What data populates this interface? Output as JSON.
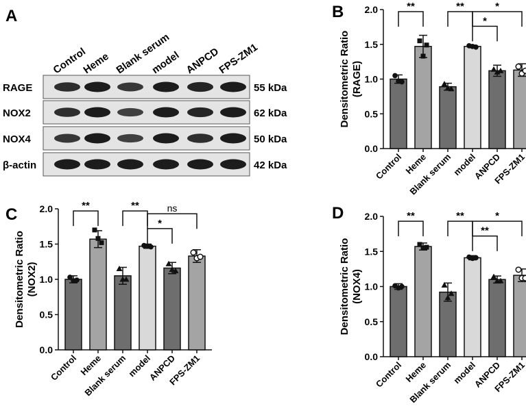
{
  "panel_letters": [
    "A",
    "B",
    "C",
    "D"
  ],
  "blot": {
    "lanes": [
      "Control",
      "Heme",
      "Blank serum",
      "model",
      "ANPCD",
      "FPS-ZM1"
    ],
    "bands": [
      {
        "protein": "RAGE",
        "size": "55 kDa"
      },
      {
        "protein": "NOX2",
        "size": "62 kDa"
      },
      {
        "protein": "NOX4",
        "size": "50 kDa"
      },
      {
        "protein": "β-actin",
        "size": "42 kDa"
      }
    ]
  },
  "chart_data": [
    {
      "panel": "B",
      "type": "bar",
      "categories": [
        "Control",
        "Heme",
        "Blank serum",
        "model",
        "ANPCD",
        "FPS-ZM1"
      ],
      "values": [
        1.0,
        1.47,
        0.89,
        1.47,
        1.12,
        1.13
      ],
      "errors": [
        0.06,
        0.16,
        0.05,
        0.02,
        0.08,
        0.09
      ],
      "points": [
        [
          1.05,
          0.97,
          0.96
        ],
        [
          1.55,
          1.33,
          1.49
        ],
        [
          0.93,
          0.87,
          0.86
        ],
        [
          1.48,
          1.47,
          1.46
        ],
        [
          1.14,
          1.1,
          1.12
        ],
        [
          1.18,
          1.08,
          1.12
        ]
      ],
      "markers": [
        "circle",
        "square",
        "triangle",
        "circle",
        "triangle",
        "circle-open"
      ],
      "ylim": [
        0,
        2.0
      ],
      "yticks": [
        "0.0",
        "0.5",
        "1.0",
        "1.5",
        "2.0"
      ],
      "ylabel": "Densitometric Ratio",
      "ylabel2": "(RAGE)",
      "significance": [
        {
          "from": 0,
          "to": 1,
          "y": 1.97,
          "label": "**"
        },
        {
          "from": 2,
          "to": 3,
          "y": 1.97,
          "label": "**"
        },
        {
          "from": 3,
          "to": 4,
          "y": 1.76,
          "label": "*"
        },
        {
          "from": 3,
          "to": 5,
          "y": 1.97,
          "label": "*"
        }
      ]
    },
    {
      "panel": "C",
      "type": "bar",
      "categories": [
        "Control",
        "Heme",
        "Blank serum",
        "model",
        "ANPCD",
        "FPS-ZM1"
      ],
      "values": [
        1.0,
        1.57,
        1.05,
        1.47,
        1.16,
        1.33
      ],
      "errors": [
        0.05,
        0.12,
        0.12,
        0.03,
        0.08,
        0.09
      ],
      "points": [
        [
          1.03,
          0.98,
          0.99
        ],
        [
          1.7,
          1.58,
          1.52
        ],
        [
          1.15,
          1.0,
          1.0
        ],
        [
          1.48,
          1.47,
          1.46
        ],
        [
          1.22,
          1.14,
          1.12
        ],
        [
          1.38,
          1.3,
          1.32
        ]
      ],
      "markers": [
        "circle",
        "square",
        "triangle",
        "circle",
        "triangle",
        "circle-open"
      ],
      "ylim": [
        0,
        2.0
      ],
      "yticks": [
        "0.0",
        "0.5",
        "1.0",
        "1.5",
        "2.0"
      ],
      "ylabel": "Densitometric Ratio",
      "ylabel2": "(NOX2)",
      "significance": [
        {
          "from": 0,
          "to": 1,
          "y": 1.97,
          "label": "**"
        },
        {
          "from": 2,
          "to": 3,
          "y": 1.97,
          "label": "**"
        },
        {
          "from": 3,
          "to": 4,
          "y": 1.72,
          "label": "*"
        },
        {
          "from": 3,
          "to": 5,
          "y": 1.93,
          "label": "ns"
        }
      ]
    },
    {
      "panel": "D",
      "type": "bar",
      "categories": [
        "Control",
        "Heme",
        "Blank serum",
        "model",
        "ANPCD",
        "FPS-ZM1"
      ],
      "values": [
        1.0,
        1.57,
        0.92,
        1.41,
        1.1,
        1.16
      ],
      "errors": [
        0.04,
        0.05,
        0.13,
        0.03,
        0.05,
        0.09
      ],
      "points": [
        [
          1.01,
          0.98,
          1.0
        ],
        [
          1.6,
          1.55,
          1.56
        ],
        [
          1.02,
          0.84,
          0.9
        ],
        [
          1.42,
          1.4,
          1.41
        ],
        [
          1.14,
          1.08,
          1.08
        ],
        [
          1.24,
          1.12,
          1.12
        ]
      ],
      "markers": [
        "circle",
        "square",
        "triangle",
        "circle",
        "triangle",
        "circle-open"
      ],
      "ylim": [
        0,
        2.0
      ],
      "yticks": [
        "0.0",
        "0.5",
        "1.0",
        "1.5",
        "2.0"
      ],
      "ylabel": "Densitometric Ratio",
      "ylabel2": "(NOX4)",
      "significance": [
        {
          "from": 0,
          "to": 1,
          "y": 1.93,
          "label": "**"
        },
        {
          "from": 2,
          "to": 3,
          "y": 1.93,
          "label": "**"
        },
        {
          "from": 3,
          "to": 4,
          "y": 1.72,
          "label": "**"
        },
        {
          "from": 3,
          "to": 5,
          "y": 1.93,
          "label": "*"
        }
      ]
    }
  ],
  "colors": {
    "bars": [
      "#6e6e6e",
      "#a4a4a4",
      "#6e6e6e",
      "#d9d9d9",
      "#6e6e6e",
      "#a4a4a4"
    ],
    "ink": "#111111",
    "blot_bg": "#e4e4e4",
    "band": "#1c1c1c"
  }
}
